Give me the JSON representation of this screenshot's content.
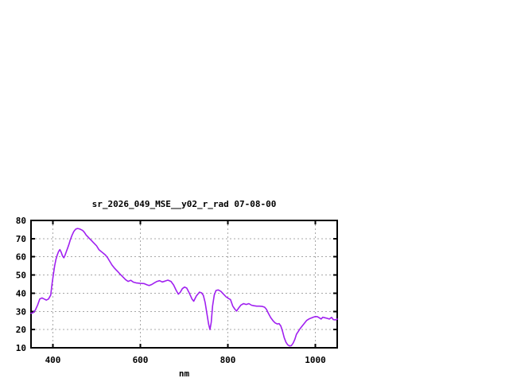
{
  "window": {
    "background": "#ffffff"
  },
  "chart_data": {
    "type": "line",
    "title": "sr_2026_049_MSE__y02_r_rad 07-08-00",
    "xlabel": "nm",
    "ylabel": "",
    "xlim": [
      350,
      1050
    ],
    "ylim": [
      10,
      80
    ],
    "x_ticks": [
      "400",
      "600",
      "800",
      "1000"
    ],
    "x_tick_values": [
      400,
      600,
      800,
      1000
    ],
    "y_ticks": [
      "80",
      "70",
      "60",
      "50",
      "40",
      "30",
      "20",
      "10"
    ],
    "y_tick_values": [
      80,
      70,
      60,
      50,
      40,
      30,
      20,
      10
    ],
    "grid": true,
    "legend_position": "none",
    "line_color": "#a020f0",
    "grid_color": "#a8a8a8",
    "border_color": "#000000",
    "series": [
      {
        "name": "sr_2026_049_MSE__y02_r_rad",
        "x": [
          350,
          355,
          360,
          365,
          370,
          375,
          380,
          385,
          390,
          395,
          398,
          401,
          404,
          407,
          410,
          413,
          416,
          419,
          422,
          425,
          428,
          431,
          434,
          437,
          440,
          444,
          448,
          452,
          456,
          460,
          464,
          468,
          472,
          476,
          480,
          484,
          488,
          492,
          496,
          500,
          505,
          510,
          515,
          520,
          525,
          530,
          535,
          540,
          545,
          548,
          554,
          560,
          566,
          572,
          578,
          584,
          590,
          600,
          608,
          615,
          620,
          626,
          632,
          638,
          644,
          650,
          656,
          663,
          670,
          676,
          682,
          687,
          691,
          696,
          701,
          706,
          712,
          718,
          722,
          728,
          735,
          740,
          744,
          748,
          752,
          756,
          759,
          762,
          765,
          769,
          773,
          778,
          784,
          790,
          796,
          801,
          806,
          811,
          816,
          820,
          825,
          830,
          836,
          842,
          848,
          854,
          860,
          866,
          872,
          878,
          884,
          888,
          893,
          898,
          903,
          908,
          913,
          917,
          921,
          925,
          929,
          933,
          937,
          941,
          945,
          949,
          953,
          957,
          961,
          965,
          970,
          975,
          980,
          985,
          990,
          995,
          1000,
          1005,
          1010,
          1013,
          1017,
          1022,
          1027,
          1032,
          1037,
          1041,
          1046,
          1050
        ],
        "y": [
          29,
          29.3,
          30.8,
          33.5,
          36.8,
          37.4,
          36.8,
          36.2,
          36.8,
          39,
          45,
          50,
          55,
          58.5,
          61,
          63,
          64,
          62.5,
          60.5,
          59.5,
          61,
          63,
          65,
          67,
          69.5,
          72,
          74,
          75.2,
          75.6,
          75.4,
          75,
          74.5,
          73.5,
          72,
          71,
          70,
          69,
          68,
          67,
          66,
          64,
          63,
          62,
          61,
          59.5,
          57.5,
          55.5,
          54,
          52.7,
          52,
          50.4,
          49,
          47.5,
          46.5,
          47.1,
          46.1,
          45.7,
          45.4,
          45.3,
          44.6,
          44.2,
          44.8,
          45.7,
          46.5,
          46.9,
          46.2,
          46.6,
          47.2,
          46.5,
          44.5,
          41.5,
          39.5,
          40.5,
          42.5,
          43.4,
          42.8,
          40,
          36.8,
          35.6,
          38.5,
          40.6,
          40.2,
          38.8,
          35,
          29,
          23,
          20,
          24,
          33,
          39,
          41.5,
          41.8,
          41,
          39.5,
          38,
          37.2,
          36.5,
          33,
          31.2,
          30.2,
          32,
          33.5,
          34.3,
          33.8,
          34.3,
          33.4,
          33.1,
          32.9,
          32.9,
          32.8,
          32.3,
          31.2,
          28.8,
          26.6,
          24.9,
          23.7,
          23.1,
          23.3,
          22,
          19,
          15.5,
          13,
          11.6,
          11,
          11.2,
          12.5,
          14.5,
          17.5,
          19,
          20.5,
          22,
          23.5,
          25,
          25.8,
          26.3,
          26.8,
          27.2,
          27,
          26.3,
          25.8,
          26.8,
          26.5,
          26.2,
          25.8,
          26.7,
          25.5,
          25.3,
          25.8
        ]
      }
    ]
  }
}
